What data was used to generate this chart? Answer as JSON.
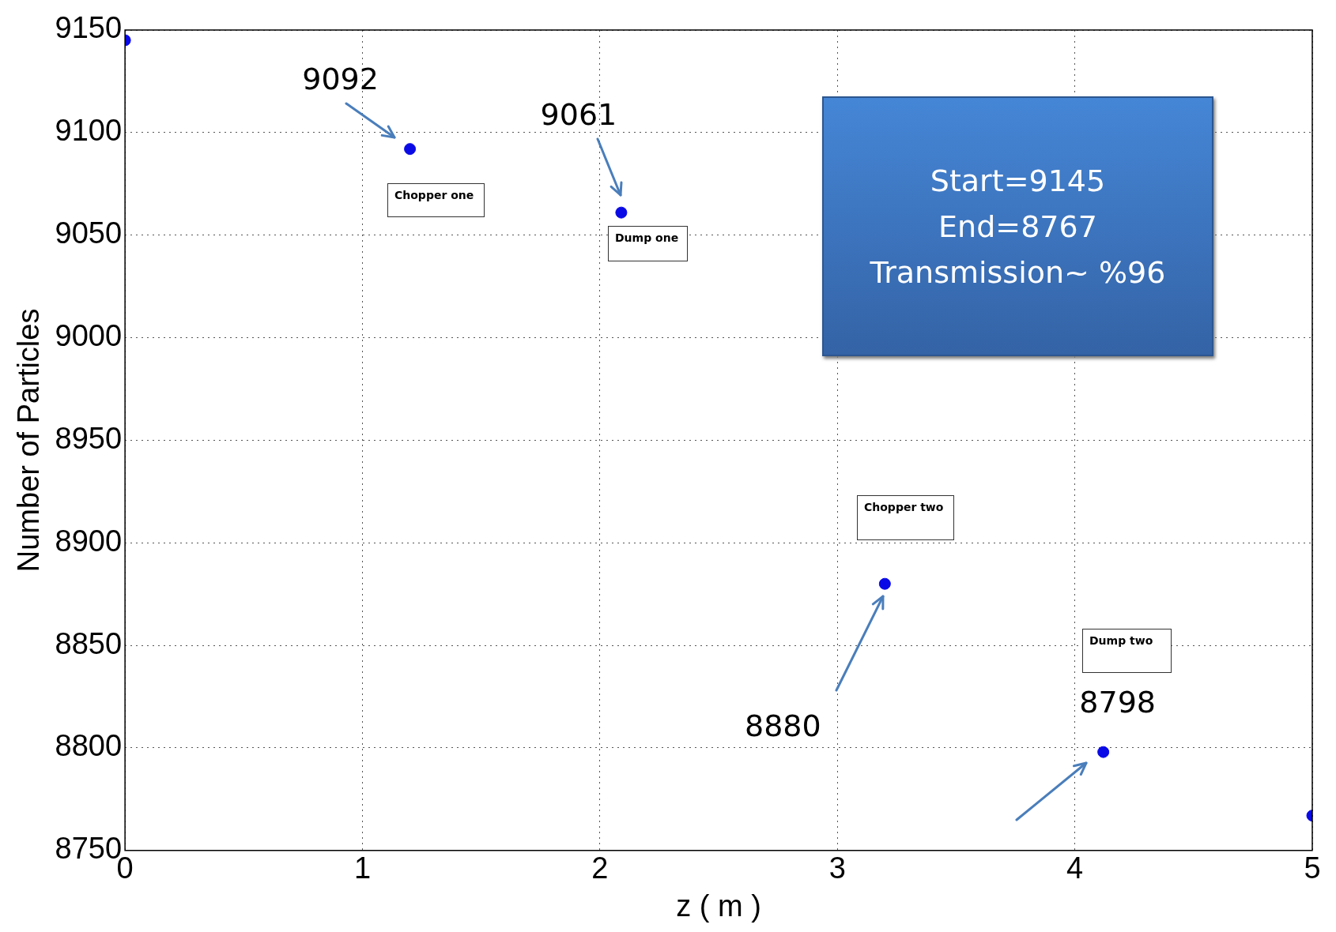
{
  "chart_data": {
    "type": "scatter",
    "xlabel": "z ( m )",
    "ylabel": "Number of Particles",
    "x": [
      0,
      1.2,
      2.09,
      3.2,
      4.12,
      5
    ],
    "series": [
      {
        "color": "#0a0ae6",
        "values": [
          9145,
          9092,
          9061,
          8880,
          8798,
          8767
        ],
        "value_labels": [
          null,
          "9092",
          "9061",
          "8880",
          "8798",
          null
        ]
      }
    ],
    "xlim": [
      0,
      5
    ],
    "xticks": [
      0,
      1,
      2,
      3,
      4,
      5
    ],
    "ylim": [
      8750,
      9150
    ],
    "yticks": [
      8750,
      8800,
      8850,
      8900,
      8950,
      9000,
      9050,
      9100,
      9150
    ],
    "grid": true,
    "legend": false,
    "marker": "circle",
    "annotations": [
      "Start=9145\nEnd=8767\nTransmission~ %96",
      "Chopper one",
      "Dump one",
      "Chopper two",
      "Dump two"
    ]
  }
}
